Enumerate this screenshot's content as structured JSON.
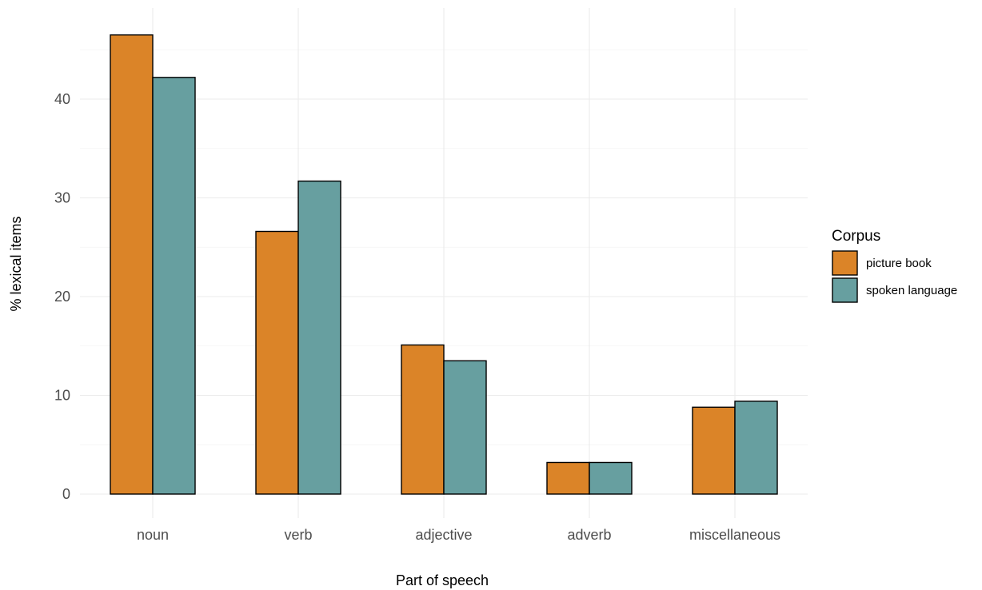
{
  "chart_data": {
    "type": "bar",
    "categories": [
      "noun",
      "verb",
      "adjective",
      "adverb",
      "miscellaneous"
    ],
    "series": [
      {
        "name": "picture book",
        "color": "#db8428",
        "values": [
          46.5,
          26.6,
          15.1,
          3.2,
          8.8
        ]
      },
      {
        "name": "spoken language",
        "color": "#679fa0",
        "values": [
          42.2,
          31.7,
          13.5,
          3.2,
          9.4
        ]
      }
    ],
    "title": "",
    "xlabel": "Part of speech",
    "ylabel": "% lexical items",
    "ylim": [
      0,
      48.5
    ],
    "yticks": [
      0,
      10,
      20,
      30,
      40
    ],
    "legend": {
      "title": "Corpus",
      "position": "right"
    },
    "grid": true
  }
}
